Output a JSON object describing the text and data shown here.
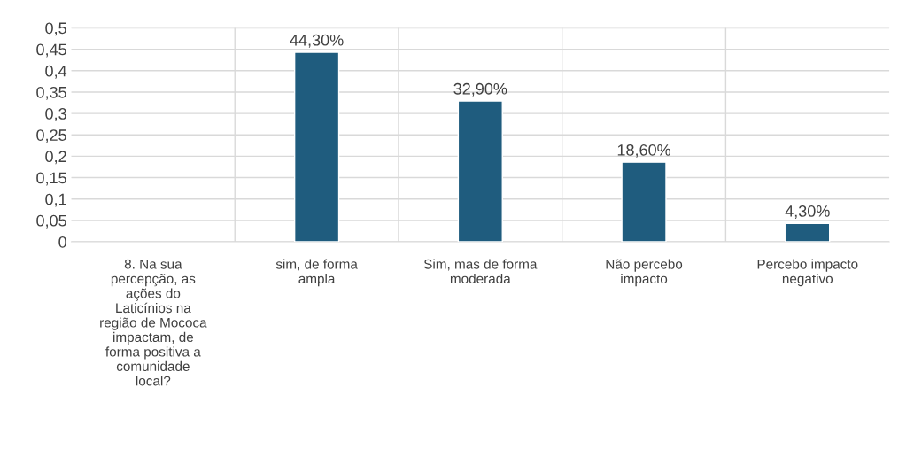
{
  "chart_data": {
    "type": "bar",
    "categories": [
      "8. Na sua\npercepção, as\nações do\nLaticínios na\nregião de Mococa\nimpactam, de\nforma positiva a\ncomunidade\nlocal?",
      "sim, de forma\nampla",
      "Sim, mas de forma\nmoderada",
      "Não percebo\nimpacto",
      "Percebo impacto\nnegativo"
    ],
    "values": [
      null,
      0.443,
      0.329,
      0.186,
      0.043
    ],
    "value_labels": [
      null,
      "44,30%",
      "32,90%",
      "18,60%",
      "4,30%"
    ],
    "color": "#1f5c7e",
    "ylim": [
      0,
      0.5
    ],
    "yticks": [
      0,
      {
        "value": 0.05,
        "label": "0,05"
      },
      {
        "value": 0.1,
        "label": "0,1"
      },
      {
        "value": 0.15,
        "label": "0,15"
      },
      {
        "value": 0.2,
        "label": "0,2"
      },
      {
        "value": 0.25,
        "label": "0,25"
      },
      {
        "value": 0.3,
        "label": "0,3"
      },
      {
        "value": 0.35,
        "label": "0,35"
      },
      {
        "value": 0.4,
        "label": "0,4"
      },
      {
        "value": 0.45,
        "label": "0,45"
      },
      {
        "value": 0.5,
        "label": "0,5"
      }
    ],
    "grid": true,
    "legend": false
  }
}
